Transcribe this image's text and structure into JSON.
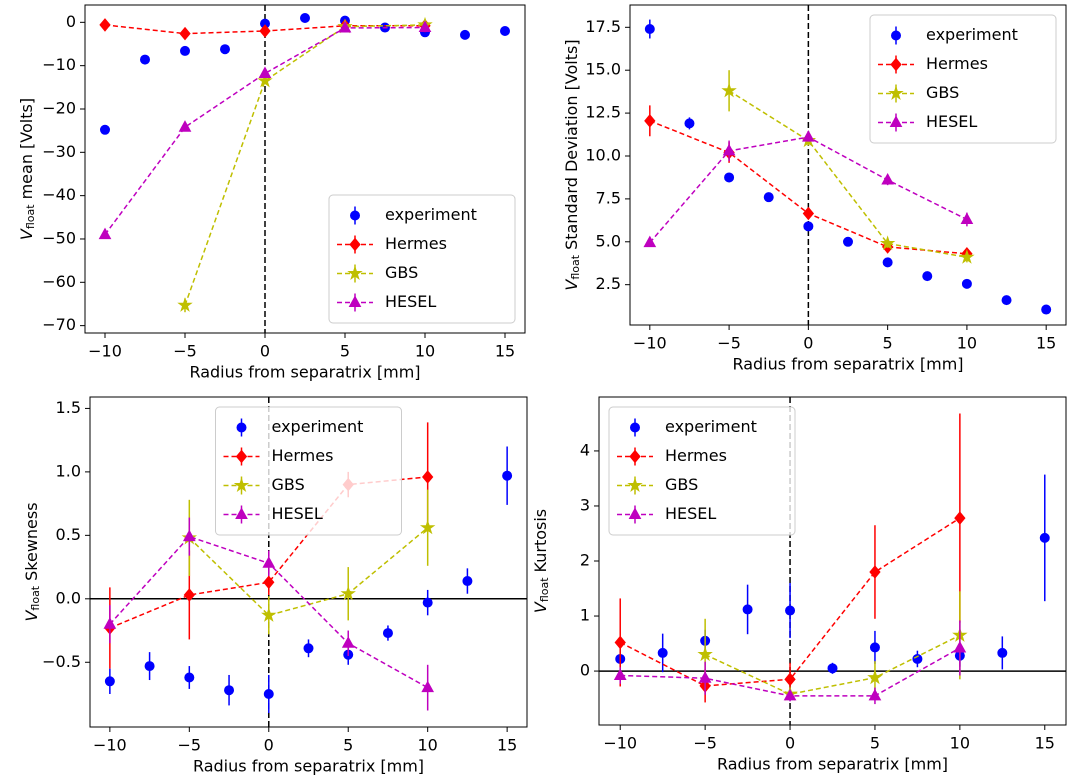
{
  "chart_data": [
    {
      "type": "errorbar",
      "x_label": "Radius from separatrix [mm]",
      "y_label": {
        "symbol": "V",
        "subscript": "float",
        "text": "mean [Volts]"
      },
      "xlim": [
        -11.25,
        16.25
      ],
      "ylim": [
        -71.7,
        4.0
      ],
      "xticks": [
        {
          "value": -10,
          "label": "−10"
        },
        {
          "value": -5,
          "label": "−5"
        },
        0,
        5,
        10,
        15
      ],
      "yticks": [
        0,
        {
          "value": -10,
          "label": "−10"
        },
        {
          "value": -20,
          "label": "−20"
        },
        {
          "value": -30,
          "label": "−30"
        },
        {
          "value": -40,
          "label": "−40"
        },
        {
          "value": -50,
          "label": "−50"
        },
        {
          "value": -60,
          "label": "−60"
        },
        {
          "value": -70,
          "label": "−70"
        }
      ],
      "separatrix_line": true,
      "zero_line": false,
      "legend": "lower right",
      "series": [
        {
          "name": "experiment",
          "color": "#0000ff",
          "marker": "circle",
          "line": false,
          "x": [
            -10,
            -7.5,
            -5,
            -2.5,
            0,
            2.5,
            5,
            7.5,
            10,
            12.5,
            15
          ],
          "values": [
            -24.8,
            -8.6,
            -6.6,
            -6.2,
            -0.3,
            1.0,
            0.4,
            -1.2,
            -2.3,
            -2.9,
            -2.0
          ],
          "errors": [
            0.5,
            0.5,
            0.5,
            0.5,
            0.5,
            0.5,
            0.5,
            0.5,
            0.5,
            0.5,
            0.5
          ]
        },
        {
          "name": "Hermes",
          "color": "#ff0000",
          "marker": "diamond",
          "line": true,
          "x": [
            -10,
            -5,
            0,
            5,
            10
          ],
          "values": [
            -0.6,
            -2.6,
            -2.0,
            -0.8,
            -0.8
          ],
          "errors": [
            0.6,
            0.6,
            0.6,
            0.6,
            0.6
          ]
        },
        {
          "name": "GBS",
          "color": "#bfbf00",
          "marker": "star",
          "line": true,
          "x": [
            -5,
            0,
            5,
            10
          ],
          "values": [
            -65.3,
            -13.5,
            -1.0,
            -0.6
          ],
          "errors": [
            1.6,
            0.8,
            0.6,
            0.8
          ]
        },
        {
          "name": "HESEL",
          "color": "#bf00bf",
          "marker": "triangle",
          "line": true,
          "x": [
            -10,
            -5,
            0,
            5,
            10
          ],
          "values": [
            -49.0,
            -24.2,
            -11.8,
            -1.3,
            -1.2
          ],
          "errors": [
            0.5,
            0.5,
            0.5,
            0.5,
            0.5
          ]
        }
      ]
    },
    {
      "type": "errorbar",
      "x_label": "Radius from separatrix [mm]",
      "y_label": {
        "symbol": "V",
        "subscript": "float",
        "text": "Standard Deviation [Volts]"
      },
      "xlim": [
        -11.25,
        16.25
      ],
      "ylim": [
        0.15,
        18.8
      ],
      "xticks": [
        {
          "value": -10,
          "label": "−10"
        },
        {
          "value": -5,
          "label": "−5"
        },
        0,
        5,
        10,
        15
      ],
      "yticks": [
        2.5,
        {
          "value": 5,
          "label": "5.0"
        },
        7.5,
        {
          "value": 10,
          "label": "10.0"
        },
        12.5,
        {
          "value": 15,
          "label": "15.0"
        },
        17.5
      ],
      "separatrix_line": true,
      "zero_line": false,
      "legend": "upper right",
      "series": [
        {
          "name": "experiment",
          "color": "#0000ff",
          "marker": "circle",
          "line": false,
          "x": [
            -10,
            -7.5,
            -5,
            -2.5,
            0,
            2.5,
            5,
            7.5,
            10,
            12.5,
            15
          ],
          "values": [
            17.4,
            11.9,
            8.75,
            7.6,
            5.9,
            5.0,
            3.8,
            3.0,
            2.55,
            1.6,
            1.05
          ],
          "errors": [
            0.55,
            0.35,
            0.2,
            0.15,
            0.1,
            0.1,
            0.1,
            0.1,
            0.1,
            0.1,
            0.1
          ]
        },
        {
          "name": "Hermes",
          "color": "#ff0000",
          "marker": "diamond",
          "line": true,
          "x": [
            -10,
            -5,
            0,
            5,
            10
          ],
          "values": [
            12.05,
            10.2,
            6.65,
            4.7,
            4.3
          ],
          "errors": [
            0.9,
            0.6,
            0.3,
            0.25,
            0.25
          ]
        },
        {
          "name": "GBS",
          "color": "#bfbf00",
          "marker": "star",
          "line": true,
          "x": [
            -5,
            0,
            5,
            10
          ],
          "values": [
            13.8,
            10.9,
            4.9,
            4.1
          ],
          "errors": [
            1.2,
            0.3,
            0.25,
            0.3
          ]
        },
        {
          "name": "HESEL",
          "color": "#bf00bf",
          "marker": "triangle",
          "line": true,
          "x": [
            -10,
            -5,
            0,
            5,
            10
          ],
          "values": [
            4.95,
            10.3,
            11.1,
            8.6,
            6.3
          ],
          "errors": [
            0.15,
            0.6,
            0.2,
            0.3,
            0.4
          ]
        }
      ]
    },
    {
      "type": "errorbar",
      "x_label": "Radius from separatrix [mm]",
      "y_label": {
        "symbol": "V",
        "subscript": "float",
        "text": "Skewness"
      },
      "xlim": [
        -11.25,
        16.25
      ],
      "ylim": [
        -1.01,
        1.59
      ],
      "xticks": [
        {
          "value": -10,
          "label": "−10"
        },
        {
          "value": -5,
          "label": "−5"
        },
        0,
        5,
        10,
        15
      ],
      "yticks": [
        {
          "value": -0.5,
          "label": "−0.5"
        },
        {
          "value": 0,
          "label": "0.0"
        },
        0.5,
        {
          "value": 1,
          "label": "1.0"
        },
        1.5
      ],
      "separatrix_line": true,
      "zero_line": true,
      "legend": "upper center",
      "series": [
        {
          "name": "experiment",
          "color": "#0000ff",
          "marker": "circle",
          "line": false,
          "x": [
            -10,
            -7.5,
            -5,
            -2.5,
            0,
            2.5,
            5,
            7.5,
            10,
            12.5,
            15
          ],
          "values": [
            -0.65,
            -0.53,
            -0.62,
            -0.72,
            -0.75,
            -0.39,
            -0.44,
            -0.27,
            -0.03,
            0.14,
            0.97
          ],
          "errors": [
            0.1,
            0.11,
            0.09,
            0.12,
            0.15,
            0.07,
            0.08,
            0.06,
            0.1,
            0.1,
            0.23
          ]
        },
        {
          "name": "Hermes",
          "color": "#ff0000",
          "marker": "diamond",
          "line": true,
          "x": [
            -10,
            -5,
            0,
            5,
            10
          ],
          "values": [
            -0.23,
            0.03,
            0.13,
            0.9,
            0.96
          ],
          "errors": [
            0.32,
            0.35,
            0.1,
            0.1,
            0.43
          ]
        },
        {
          "name": "GBS",
          "color": "#bfbf00",
          "marker": "star",
          "line": true,
          "x": [
            -5,
            0,
            5,
            10
          ],
          "values": [
            0.48,
            -0.13,
            0.04,
            0.56
          ],
          "errors": [
            0.3,
            0.15,
            0.21,
            0.3
          ]
        },
        {
          "name": "HESEL",
          "color": "#bf00bf",
          "marker": "triangle",
          "line": true,
          "x": [
            -10,
            -5,
            0,
            5,
            10
          ],
          "values": [
            -0.2,
            0.49,
            0.28,
            -0.35,
            -0.7
          ],
          "errors": [
            0.15,
            0.15,
            0.1,
            0.1,
            0.18
          ]
        }
      ]
    },
    {
      "type": "errorbar",
      "x_label": "Radius from separatrix [mm]",
      "y_label": {
        "symbol": "V",
        "subscript": "float",
        "text": "Kurtosis"
      },
      "xlim": [
        -11.25,
        16.25
      ],
      "ylim": [
        -0.98,
        4.98
      ],
      "xticks": [
        {
          "value": -10,
          "label": "−10"
        },
        {
          "value": -5,
          "label": "−5"
        },
        0,
        5,
        10,
        15
      ],
      "yticks": [
        0,
        1,
        2,
        3,
        4
      ],
      "separatrix_line": true,
      "zero_line": true,
      "legend": "upper left",
      "series": [
        {
          "name": "experiment",
          "color": "#0000ff",
          "marker": "circle",
          "line": false,
          "x": [
            -10,
            -7.5,
            -5,
            -2.5,
            0,
            2.5,
            5,
            7.5,
            10,
            12.5,
            15
          ],
          "values": [
            0.22,
            0.33,
            0.55,
            1.12,
            1.1,
            0.05,
            0.43,
            0.22,
            0.28,
            0.33,
            2.42
          ],
          "errors": [
            0.2,
            0.35,
            0.2,
            0.45,
            0.5,
            0.1,
            0.3,
            0.15,
            0.2,
            0.3,
            1.15
          ]
        },
        {
          "name": "Hermes",
          "color": "#ff0000",
          "marker": "diamond",
          "line": true,
          "x": [
            -10,
            -5,
            0,
            5,
            10
          ],
          "values": [
            0.52,
            -0.27,
            -0.15,
            1.8,
            2.78
          ],
          "errors": [
            0.8,
            0.3,
            0.3,
            0.85,
            1.9
          ]
        },
        {
          "name": "GBS",
          "color": "#bfbf00",
          "marker": "star",
          "line": true,
          "x": [
            -5,
            0,
            5,
            10
          ],
          "values": [
            0.3,
            -0.42,
            -0.12,
            0.65
          ],
          "errors": [
            0.65,
            0.1,
            0.3,
            0.8
          ]
        },
        {
          "name": "HESEL",
          "color": "#bf00bf",
          "marker": "triangle",
          "line": true,
          "x": [
            -10,
            -5,
            0,
            5,
            10
          ],
          "values": [
            -0.08,
            -0.13,
            -0.45,
            -0.45,
            0.42
          ],
          "errors": [
            0.15,
            0.3,
            0.1,
            0.15,
            0.5
          ]
        }
      ]
    }
  ]
}
